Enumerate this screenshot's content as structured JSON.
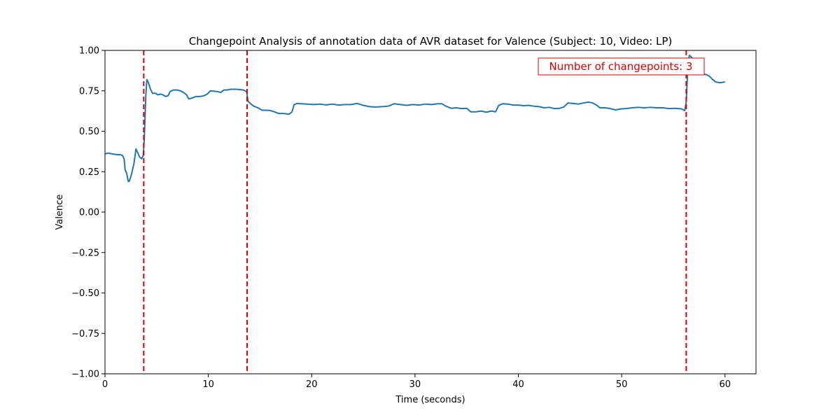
{
  "chart_data": {
    "type": "line",
    "title": "Changepoint Analysis of annotation data of AVR dataset for Valence (Subject: 10, Video: LP)",
    "xlabel": "Time (seconds)",
    "ylabel": "Valence",
    "xlim": [
      0,
      63
    ],
    "ylim": [
      -1.0,
      1.0
    ],
    "x_ticks": [
      0,
      10,
      20,
      30,
      40,
      50,
      60
    ],
    "x_tick_labels": [
      "0",
      "10",
      "20",
      "30",
      "40",
      "50",
      "60"
    ],
    "y_ticks": [
      -1.0,
      -0.75,
      -0.5,
      -0.25,
      0.0,
      0.25,
      0.5,
      0.75,
      1.0
    ],
    "y_tick_labels": [
      "−1.00",
      "−0.75",
      "−0.50",
      "−0.25",
      "0.00",
      "0.25",
      "0.50",
      "0.75",
      "1.00"
    ],
    "grid": false,
    "series": [
      {
        "color": "#1f77b4",
        "points": [
          [
            0,
            0.36
          ],
          [
            0.3,
            0.365
          ],
          [
            0.7,
            0.36
          ],
          [
            1.2,
            0.355
          ],
          [
            1.5,
            0.355
          ],
          [
            1.7,
            0.35
          ],
          [
            1.85,
            0.33
          ],
          [
            1.95,
            0.26
          ],
          [
            2.1,
            0.24
          ],
          [
            2.25,
            0.19
          ],
          [
            2.35,
            0.19
          ],
          [
            2.55,
            0.23
          ],
          [
            2.8,
            0.3
          ],
          [
            3.0,
            0.39
          ],
          [
            3.15,
            0.37
          ],
          [
            3.35,
            0.34
          ],
          [
            3.55,
            0.33
          ],
          [
            3.7,
            0.35
          ],
          [
            3.8,
            0.45
          ],
          [
            3.95,
            0.72
          ],
          [
            4.05,
            0.82
          ],
          [
            4.2,
            0.8
          ],
          [
            4.4,
            0.76
          ],
          [
            4.6,
            0.735
          ],
          [
            4.9,
            0.735
          ],
          [
            5.1,
            0.725
          ],
          [
            5.4,
            0.73
          ],
          [
            5.6,
            0.725
          ],
          [
            5.9,
            0.715
          ],
          [
            6.1,
            0.72
          ],
          [
            6.3,
            0.745
          ],
          [
            6.6,
            0.755
          ],
          [
            7.0,
            0.755
          ],
          [
            7.3,
            0.75
          ],
          [
            7.6,
            0.74
          ],
          [
            7.9,
            0.725
          ],
          [
            8.1,
            0.7
          ],
          [
            8.4,
            0.705
          ],
          [
            8.8,
            0.715
          ],
          [
            9.2,
            0.715
          ],
          [
            9.6,
            0.72
          ],
          [
            9.9,
            0.73
          ],
          [
            10.2,
            0.75
          ],
          [
            10.5,
            0.748
          ],
          [
            10.9,
            0.745
          ],
          [
            11.2,
            0.74
          ],
          [
            11.5,
            0.755
          ],
          [
            11.8,
            0.755
          ],
          [
            12.2,
            0.76
          ],
          [
            12.6,
            0.76
          ],
          [
            13.0,
            0.758
          ],
          [
            13.4,
            0.755
          ],
          [
            13.7,
            0.745
          ],
          [
            13.85,
            0.685
          ],
          [
            14.1,
            0.67
          ],
          [
            14.4,
            0.655
          ],
          [
            14.8,
            0.645
          ],
          [
            15.2,
            0.63
          ],
          [
            15.6,
            0.63
          ],
          [
            16.0,
            0.628
          ],
          [
            16.4,
            0.62
          ],
          [
            16.8,
            0.61
          ],
          [
            17.3,
            0.61
          ],
          [
            17.8,
            0.605
          ],
          [
            18.1,
            0.62
          ],
          [
            18.3,
            0.665
          ],
          [
            18.6,
            0.672
          ],
          [
            19.0,
            0.67
          ],
          [
            19.6,
            0.668
          ],
          [
            20.2,
            0.665
          ],
          [
            20.8,
            0.668
          ],
          [
            21.4,
            0.663
          ],
          [
            22.0,
            0.668
          ],
          [
            22.6,
            0.662
          ],
          [
            23.2,
            0.665
          ],
          [
            23.8,
            0.665
          ],
          [
            24.4,
            0.672
          ],
          [
            25.0,
            0.66
          ],
          [
            25.6,
            0.652
          ],
          [
            26.2,
            0.65
          ],
          [
            26.8,
            0.652
          ],
          [
            27.4,
            0.655
          ],
          [
            28.0,
            0.67
          ],
          [
            28.6,
            0.665
          ],
          [
            29.2,
            0.66
          ],
          [
            29.8,
            0.665
          ],
          [
            30.4,
            0.662
          ],
          [
            31.0,
            0.668
          ],
          [
            31.6,
            0.665
          ],
          [
            32.2,
            0.67
          ],
          [
            32.6,
            0.67
          ],
          [
            33.0,
            0.655
          ],
          [
            33.5,
            0.642
          ],
          [
            34.0,
            0.645
          ],
          [
            34.5,
            0.64
          ],
          [
            35.0,
            0.642
          ],
          [
            35.4,
            0.62
          ],
          [
            35.9,
            0.62
          ],
          [
            36.4,
            0.625
          ],
          [
            36.9,
            0.618
          ],
          [
            37.4,
            0.625
          ],
          [
            37.8,
            0.62
          ],
          [
            38.1,
            0.66
          ],
          [
            38.5,
            0.67
          ],
          [
            39.0,
            0.668
          ],
          [
            39.5,
            0.662
          ],
          [
            40.0,
            0.662
          ],
          [
            40.5,
            0.658
          ],
          [
            41.0,
            0.66
          ],
          [
            41.5,
            0.655
          ],
          [
            42.0,
            0.652
          ],
          [
            42.5,
            0.645
          ],
          [
            43.0,
            0.648
          ],
          [
            43.5,
            0.64
          ],
          [
            44.0,
            0.642
          ],
          [
            44.4,
            0.65
          ],
          [
            44.8,
            0.675
          ],
          [
            45.3,
            0.672
          ],
          [
            45.8,
            0.668
          ],
          [
            46.3,
            0.675
          ],
          [
            46.8,
            0.68
          ],
          [
            47.2,
            0.675
          ],
          [
            47.6,
            0.66
          ],
          [
            47.9,
            0.645
          ],
          [
            48.4,
            0.645
          ],
          [
            48.9,
            0.64
          ],
          [
            49.4,
            0.632
          ],
          [
            49.9,
            0.638
          ],
          [
            50.4,
            0.64
          ],
          [
            51.0,
            0.645
          ],
          [
            51.6,
            0.648
          ],
          [
            52.2,
            0.645
          ],
          [
            52.8,
            0.648
          ],
          [
            53.4,
            0.645
          ],
          [
            54.0,
            0.645
          ],
          [
            54.6,
            0.64
          ],
          [
            55.2,
            0.642
          ],
          [
            55.8,
            0.638
          ],
          [
            56.1,
            0.628
          ],
          [
            56.25,
            0.68
          ],
          [
            56.4,
            0.9
          ],
          [
            56.55,
            0.97
          ],
          [
            56.8,
            0.955
          ],
          [
            57.1,
            0.93
          ],
          [
            57.4,
            0.89
          ],
          [
            57.8,
            0.855
          ],
          [
            58.2,
            0.85
          ],
          [
            58.5,
            0.84
          ],
          [
            58.8,
            0.82
          ],
          [
            59.1,
            0.805
          ],
          [
            59.5,
            0.8
          ],
          [
            60.0,
            0.805
          ]
        ]
      }
    ],
    "changepoints": [
      3.75,
      13.75,
      56.25
    ],
    "changepoint_color": "#e00000",
    "annotation": "Number of changepoints: 3"
  }
}
